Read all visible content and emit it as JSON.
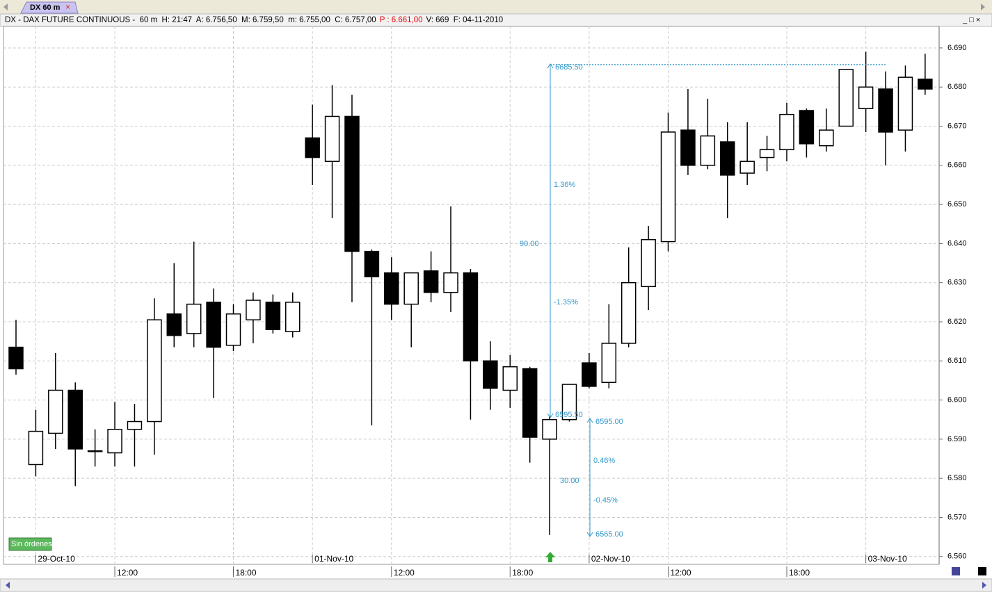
{
  "window": {
    "tab": "DX 60 m",
    "info": [
      "DX - DAX FUTURE CONTINUOUS -  60 m  H: 21:47  A: 6.756,50  M: 6.759,50  m: 6.755,00  C: 6.757,00",
      "P : 6.661,00",
      "V: 669  F: 04-11-2010"
    ],
    "button": "Sin órdenes"
  },
  "chart_data": {
    "type": "candlestick",
    "categories": [
      null,
      "29-Oct-10",
      null,
      null,
      null,
      "12:00",
      null,
      null,
      null,
      null,
      null,
      "18:00",
      null,
      null,
      null,
      "01-Nov-10",
      null,
      null,
      null,
      "12:00",
      null,
      null,
      null,
      null,
      null,
      "18:00",
      null,
      null,
      null,
      "02-Nov-10",
      null,
      null,
      null,
      "12:00",
      null,
      null,
      null,
      null,
      null,
      "18:00",
      null,
      null,
      null,
      "03-Nov-10",
      null,
      null,
      null
    ],
    "open": [
      6613.5,
      6583.5,
      6591.5,
      6602.5,
      6587,
      6586.5,
      6592.5,
      6594.5,
      6622,
      6617,
      6625,
      6614,
      6620.5,
      6625,
      6617.5,
      6667,
      6661,
      6672.5,
      6638,
      6632.5,
      6624.5,
      6633,
      6627.5,
      6632.5,
      6610,
      6602.5,
      6608,
      6590,
      6595,
      6609.5,
      6604.5,
      6614.5,
      6629,
      6640.5,
      6669,
      6660,
      6666,
      6658,
      6662,
      6664,
      6674,
      6665,
      6670,
      6674.5,
      6679.5,
      6669,
      6682
    ],
    "high": [
      6620.5,
      6597.5,
      6612,
      6604.5,
      6592.5,
      6599.5,
      6599,
      6626,
      6635,
      6640.5,
      6628.5,
      6624.5,
      6627.5,
      6627,
      6627.5,
      6675.5,
      6680.5,
      6678,
      6638.5,
      6636.5,
      6632.5,
      6638,
      6649.5,
      6633.5,
      6615,
      6611.5,
      6608.5,
      6596,
      6604,
      6612,
      6624.5,
      6639,
      6644.5,
      6673.5,
      6679.5,
      6677,
      6671,
      6671,
      6667.5,
      6676,
      6674.5,
      6674.5,
      6684.5,
      6689,
      6684,
      6685.5,
      6688.5
    ],
    "low": [
      6606.5,
      6580.5,
      6587.5,
      6578,
      6583,
      6583,
      6583,
      6586,
      6613.5,
      6613.5,
      6600.5,
      6612.5,
      6614.5,
      6617,
      6616,
      6655,
      6646.5,
      6625,
      6593.5,
      6620.5,
      6613.5,
      6625,
      6622.5,
      6595,
      6597.5,
      6598,
      6584,
      6565.5,
      6594.5,
      6603,
      6603,
      6613.5,
      6623,
      6638,
      6657.5,
      6659,
      6646.5,
      6655,
      6658.5,
      6661,
      6662,
      6663.5,
      6670,
      6668.5,
      6660,
      6663.5,
      6678
    ],
    "close": [
      6608,
      6592,
      6602.5,
      6587.5,
      6587,
      6592.5,
      6594.5,
      6620.5,
      6616.5,
      6624.5,
      6613.5,
      6622,
      6625.5,
      6618,
      6625,
      6662,
      6672.5,
      6638,
      6631.5,
      6624.5,
      6632.5,
      6627.5,
      6632.5,
      6610,
      6603,
      6608.5,
      6590.5,
      6595,
      6604,
      6603.5,
      6614.5,
      6630,
      6641,
      6668.5,
      6660,
      6667.5,
      6657.5,
      6661,
      6664,
      6673,
      6665.5,
      6669,
      6684.5,
      6680,
      6668.5,
      6682.5,
      6679.5
    ],
    "up_color": "#ffffff",
    "down_color": "#000000",
    "ylim": [
      6558,
      6695.5
    ],
    "yticks": [
      {
        "value": 6560,
        "label": "6.560"
      },
      {
        "value": 6570,
        "label": "6.570"
      },
      {
        "value": 6580,
        "label": "6.580"
      },
      {
        "value": 6590,
        "label": "6.590"
      },
      {
        "value": 6600,
        "label": "6.600"
      },
      {
        "value": 6610,
        "label": "6.610"
      },
      {
        "value": 6620,
        "label": "6.620"
      },
      {
        "value": 6630,
        "label": "6.630"
      },
      {
        "value": 6640,
        "label": "6.640"
      },
      {
        "value": 6650,
        "label": "6.650"
      },
      {
        "value": 6660,
        "label": "6.660"
      },
      {
        "value": 6670,
        "label": "6.670"
      },
      {
        "value": 6680,
        "label": "6.680"
      },
      {
        "value": 6690,
        "label": "6.690"
      }
    ],
    "grid": true,
    "annotations": [
      "6685.50",
      "1.36%",
      "90.00",
      "-1.35%",
      "6595.50",
      "6595.00",
      "0.46%",
      "30.00",
      "-0.45%",
      "6565.00"
    ]
  }
}
